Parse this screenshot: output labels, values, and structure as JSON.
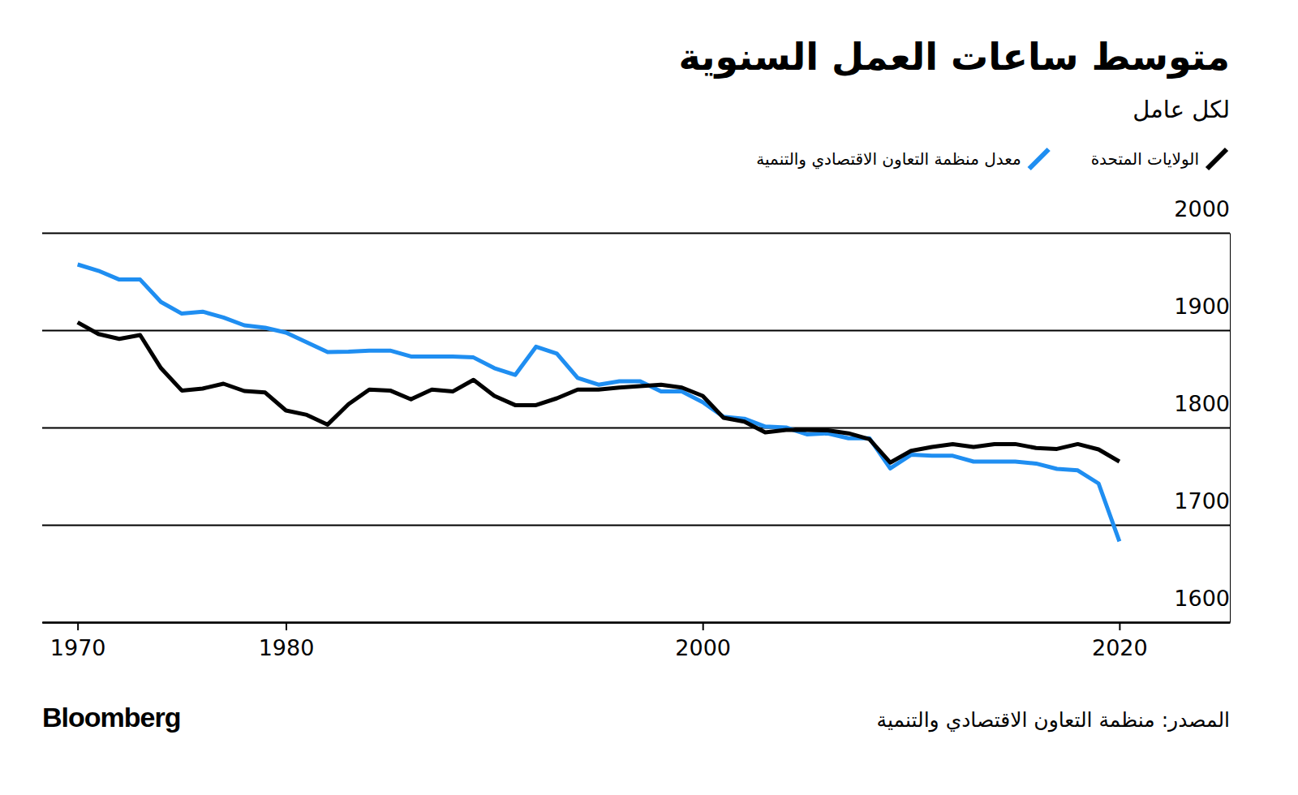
{
  "chart_data": {
    "type": "line",
    "title": "متوسط ساعات العمل السنوية",
    "subtitle": "لكل عامل",
    "source": "المصدر: منظمة التعاون الاقتصادي والتنمية",
    "credit": "Bloomberg",
    "x": [
      1970,
      1971,
      1972,
      1973,
      1974,
      1975,
      1976,
      1977,
      1978,
      1979,
      1980,
      1981,
      1982,
      1983,
      1984,
      1985,
      1986,
      1987,
      1988,
      1989,
      1990,
      1991,
      1992,
      1993,
      1994,
      1995,
      1996,
      1997,
      1998,
      1999,
      2000,
      2001,
      2002,
      2003,
      2004,
      2005,
      2006,
      2007,
      2008,
      2009,
      2010,
      2011,
      2012,
      2013,
      2014,
      2015,
      2016,
      2017,
      2018,
      2019,
      2020
    ],
    "series": [
      {
        "name": "الولايات المتحدة",
        "color": "#000000",
        "values": [
          1908,
          1896,
          1891,
          1895,
          1861,
          1838,
          1840,
          1845,
          1837.5,
          1836,
          1817.5,
          1813,
          1803,
          1824,
          1839,
          1838,
          1829,
          1839,
          1837,
          1849,
          1832.5,
          1823,
          1823,
          1830,
          1839,
          1839,
          1841,
          1842.5,
          1844,
          1841,
          1832.5,
          1810,
          1806,
          1795,
          1797.5,
          1797.5,
          1797,
          1794,
          1788,
          1764,
          1776,
          1780,
          1783,
          1780,
          1783,
          1783,
          1779,
          1778,
          1783,
          1777.5,
          1765
        ]
      },
      {
        "name": "معدل منظمة التعاون الاقتصادي والتنمية",
        "color": "#1f8ef1",
        "values": [
          1967.5,
          1961,
          1952,
          1952,
          1929,
          1917,
          1919,
          1913,
          1905,
          1902.5,
          1897.5,
          1887.5,
          1877.5,
          1878,
          1879,
          1879,
          1873,
          1873,
          1873,
          1872,
          1861,
          1854,
          1883,
          1876,
          1851,
          1844,
          1847.5,
          1847.5,
          1837,
          1837,
          1826,
          1811,
          1809,
          1801,
          1800,
          1793,
          1794,
          1789,
          1789,
          1758,
          1772,
          1771,
          1771,
          1765,
          1765,
          1765,
          1763,
          1757.5,
          1756,
          1742.5,
          1683
        ]
      }
    ],
    "xlim": [
      1968.3,
      2025.3
    ],
    "xticks": [
      1970,
      1980,
      2000,
      2020
    ],
    "ylim": [
      1600,
      2000
    ],
    "yticks": [
      1600,
      1700,
      1800,
      1900,
      2000
    ],
    "grid": true,
    "legend": "top-right"
  }
}
